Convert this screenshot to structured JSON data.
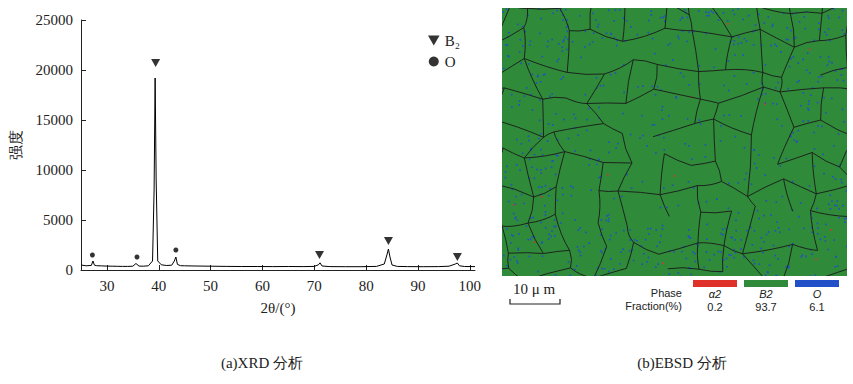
{
  "chart_data": {
    "type": "line",
    "x_label": "2θ/(°)",
    "y_label": "强度",
    "x": [
      25,
      26,
      27,
      27.3,
      27.6,
      28,
      29,
      30,
      31,
      32,
      33,
      34,
      35,
      35.6,
      36.2,
      37,
      38,
      38.8,
      39.1,
      39.3,
      39.5,
      39.8,
      40.5,
      41.5,
      42.5,
      43.0,
      43.3,
      43.6,
      44.2,
      45,
      47,
      50,
      53,
      56,
      59,
      62,
      65,
      68,
      70,
      70.8,
      71.1,
      71.5,
      73,
      76,
      79,
      82,
      83.5,
      84.0,
      84.3,
      84.6,
      85,
      86,
      88,
      91,
      94,
      96,
      97.2,
      97.6,
      98,
      99,
      101
    ],
    "values": [
      500,
      420,
      460,
      900,
      480,
      430,
      410,
      390,
      380,
      370,
      360,
      360,
      380,
      650,
      390,
      380,
      420,
      900,
      8000,
      19200,
      9000,
      900,
      520,
      450,
      480,
      900,
      1300,
      560,
      430,
      420,
      400,
      380,
      360,
      350,
      350,
      340,
      350,
      340,
      360,
      520,
      720,
      400,
      340,
      330,
      330,
      360,
      600,
      1500,
      2100,
      1300,
      500,
      360,
      340,
      330,
      340,
      380,
      600,
      700,
      420,
      350,
      340
    ],
    "color": "#000000",
    "series": [
      {
        "name": "B₂",
        "type": "scatter",
        "marker": "triangle_down",
        "color": "#000000",
        "x": [
          39.4,
          71.0,
          84.3,
          97.6
        ],
        "values": [
          20700,
          1500,
          2900,
          1300
        ]
      },
      {
        "name": "O",
        "type": "scatter",
        "marker": "circle",
        "color": "#000000",
        "x": [
          27.2,
          35.8,
          43.3
        ],
        "values": [
          1500,
          1300,
          2000
        ]
      }
    ],
    "xlim": [
      25,
      101
    ],
    "xticks": [
      30,
      40,
      50,
      60,
      70,
      80,
      90,
      100
    ],
    "ylim": [
      0,
      25000
    ],
    "yticks": [
      0,
      5000,
      10000,
      15000,
      20000,
      25000
    ],
    "grid": false,
    "legend": "upper right"
  },
  "captions": [
    "(a)XRD 分析",
    "(b)EBSD 分析"
  ],
  "ebsd_panel": {
    "scale_bar": "10 μ m",
    "legend_head": [
      "Phase",
      "Fraction(%)"
    ],
    "phases": [
      {
        "name": "α2",
        "fraction": 0.2,
        "color": "#e0302a"
      },
      {
        "name": "B2",
        "fraction": 93.7,
        "color": "#2f8a3a"
      },
      {
        "name": "O",
        "fraction": 6.1,
        "color": "#2150c8"
      }
    ]
  }
}
